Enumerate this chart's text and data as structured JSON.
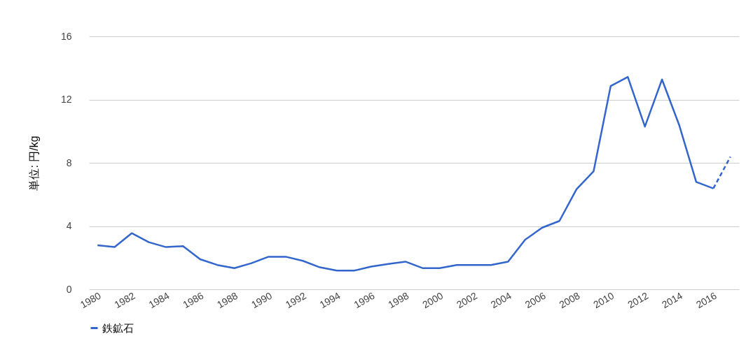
{
  "chart_data": {
    "type": "line",
    "ylabel": "単位: 円/kg",
    "x": [
      1980,
      1981,
      1982,
      1983,
      1984,
      1985,
      1986,
      1987,
      1988,
      1989,
      1990,
      1991,
      1992,
      1993,
      1994,
      1995,
      1996,
      1997,
      1998,
      1999,
      2000,
      2001,
      2002,
      2003,
      2004,
      2005,
      2006,
      2007,
      2008,
      2009,
      2010,
      2011,
      2012,
      2013,
      2014,
      2015,
      2016
    ],
    "series": [
      {
        "name": "鉄鉱石",
        "color": "#3366cc",
        "line_style": "solid",
        "values": [
          2.78,
          2.67,
          3.55,
          2.98,
          2.67,
          2.73,
          1.9,
          1.54,
          1.34,
          1.65,
          2.06,
          2.06,
          1.8,
          1.39,
          1.18,
          1.18,
          1.44,
          1.6,
          1.75,
          1.34,
          1.34,
          1.54,
          1.54,
          1.54,
          1.75,
          3.14,
          3.9,
          4.32,
          6.33,
          7.46,
          12.86,
          13.43,
          10.29,
          13.27,
          10.4,
          6.79,
          6.38
        ]
      },
      {
        "color": "#3366cc",
        "line_style": "dashed",
        "x": [
          2016,
          2017
        ],
        "values": [
          6.38,
          8.38
        ]
      }
    ],
    "xlim": [
      1979.5,
      2017.5
    ],
    "xticks": [
      1980,
      1982,
      1984,
      1986,
      1988,
      1990,
      1992,
      1994,
      1996,
      1998,
      2000,
      2002,
      2004,
      2006,
      2008,
      2010,
      2012,
      2014,
      2016
    ],
    "ylim": [
      0,
      16
    ],
    "yticks": [
      0,
      4,
      8,
      12,
      16
    ],
    "grid": "y",
    "legend": "bottom",
    "marker": "none"
  }
}
